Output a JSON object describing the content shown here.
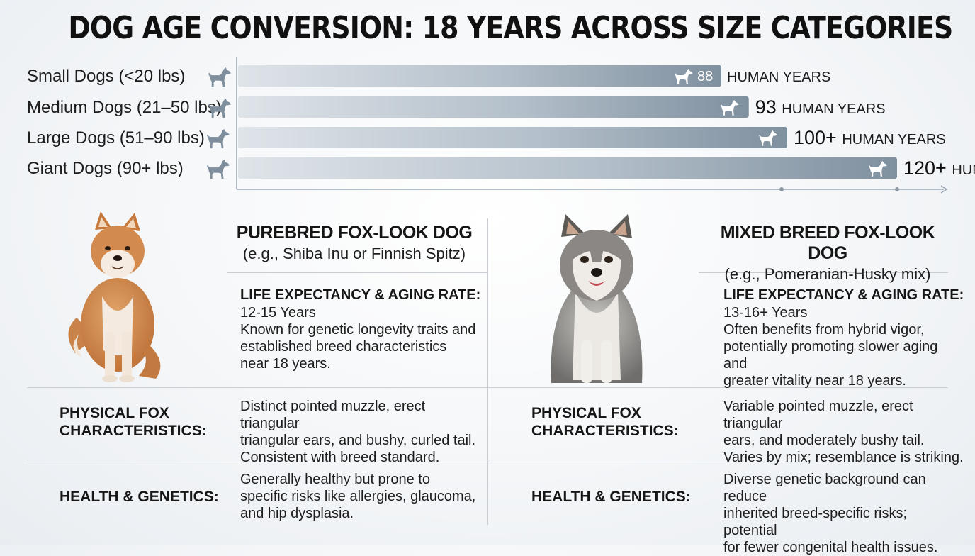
{
  "title": "DOG AGE CONVERSION: 18 YEARS ACROSS SIZE CATEGORIES",
  "chart_data": {
    "type": "bar",
    "orientation": "horizontal",
    "title": "DOG AGE CONVERSION: 18 YEARS ACROSS SIZE CATEGORIES",
    "categories": [
      "Small Dogs (<20 lbs)",
      "Medium Dogs (21–50 lbs)",
      "Large Dogs (51–90 lbs)",
      "Giant Dogs (90+ lbs)"
    ],
    "values": [
      88,
      93,
      100,
      120
    ],
    "value_labels": [
      "88",
      "93",
      "100+",
      "120+"
    ],
    "unit_label": "HUMAN YEARS",
    "xlim": [
      0,
      128
    ],
    "grid": false,
    "bar_color": "#8a9aa8"
  },
  "purebred": {
    "name": "PUREBRED FOX-LOOK DOG",
    "example": "(e.g., Shiba Inu or Finnish Spitz)",
    "life_header": "LIFE EXPECTANCY & AGING RATE:",
    "life_text": [
      "12-15 Years",
      "Known for genetic longevity traits and",
      "established breed characteristics",
      "near 18 years."
    ],
    "physical_label": [
      "PHYSICAL FOX",
      "CHARACTERISTICS:"
    ],
    "physical_text": [
      "Distinct pointed muzzle, erect triangular",
      "triangular ears, and bushy, curled tail.",
      "Consistent with breed standard."
    ],
    "health_label": "HEALTH & GENETICS:",
    "health_text": [
      "Generally healthy but prone to",
      "specific risks like allergies, glaucoma,",
      "and hip dysplasia."
    ]
  },
  "mixed": {
    "name": "MIXED BREED FOX-LOOK DOG",
    "example": "(e.g., Pomeranian-Husky mix)",
    "life_header": "LIFE EXPECTANCY & AGING RATE:",
    "life_text": [
      "13-16+ Years",
      "Often benefits from hybrid vigor,",
      "potentially promoting slower aging and",
      "greater vitality near 18 years."
    ],
    "physical_label": [
      "PHYSICAL FOX",
      "CHARACTERISTICS:"
    ],
    "physical_text": [
      "Variable pointed muzzle, erect triangular",
      "ears, and moderately bushy tail.",
      "Varies by mix; resemblance is striking."
    ],
    "health_label": "HEALTH & GENETICS:",
    "health_text": [
      "Diverse genetic background can reduce",
      "inherited breed-specific risks; potential",
      "for fewer congenital health issues."
    ]
  },
  "icons": {
    "dog": "dog-silhouette-icon",
    "shiba": "shiba-inu-photo",
    "mix": "pomeranian-husky-photo"
  }
}
